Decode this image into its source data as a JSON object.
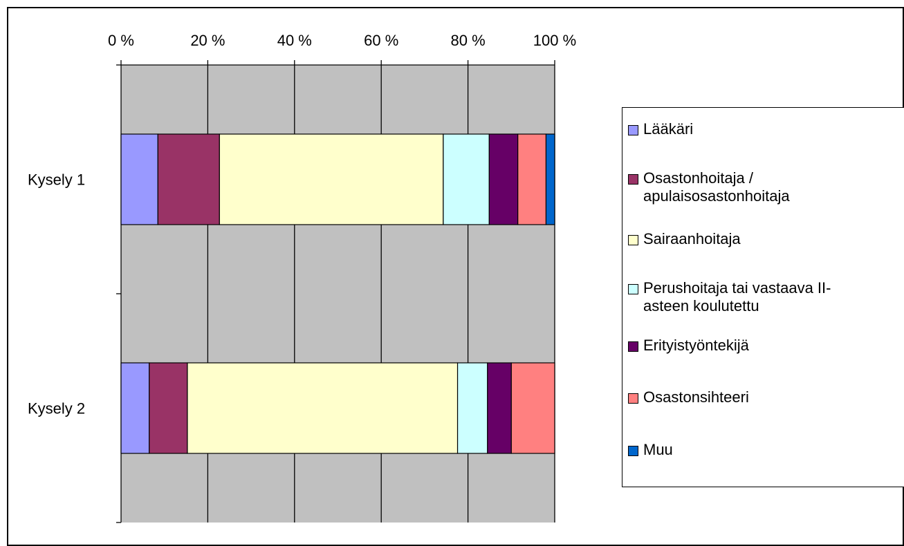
{
  "chart_data": {
    "type": "bar",
    "orientation": "horizontal",
    "stacked": "percent",
    "categories": [
      "Kysely 1",
      "Kysely 2"
    ],
    "x_ticks": [
      "0 %",
      "20 %",
      "40 %",
      "60 %",
      "80 %",
      "100 %"
    ],
    "xlim": [
      0,
      100
    ],
    "grid": true,
    "legend_position": "right",
    "series": [
      {
        "name": "Lääkäri",
        "color": "#9999ff",
        "values": [
          8.5,
          6.5
        ]
      },
      {
        "name": "Osastonhoitaja /\napulaisosastonhoitaja",
        "color": "#993366",
        "values": [
          14.2,
          8.8
        ]
      },
      {
        "name": "Sairaanhoitaja",
        "color": "#ffffcc",
        "values": [
          51.6,
          62.3
        ]
      },
      {
        "name": "Perushoitaja tai vastaava II-\nasteen koulutettu",
        "color": "#ccffff",
        "values": [
          10.6,
          6.9
        ]
      },
      {
        "name": "Erityistyöntekijä",
        "color": "#660066",
        "values": [
          6.6,
          5.5
        ]
      },
      {
        "name": "Osastonsihteeri",
        "color": "#ff8080",
        "values": [
          6.5,
          10.0
        ]
      },
      {
        "name": "Muu",
        "color": "#0066cc",
        "values": [
          2.0,
          0.0
        ]
      }
    ]
  }
}
